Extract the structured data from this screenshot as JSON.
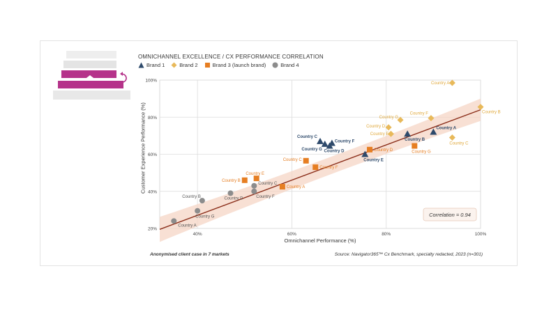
{
  "chart_data": {
    "type": "scatter",
    "title": "OMNICHANNEL EXCELLENCE / CX PERFORMANCE CORRELATION",
    "xlabel": "Omnichannel Performance (%)",
    "ylabel": "Customer Experience Performance (%)",
    "xlim": [
      32,
      100
    ],
    "ylim": [
      20,
      100
    ],
    "xticks": [
      "40%",
      "60%",
      "80%",
      "100%"
    ],
    "xtick_values": [
      40,
      60,
      80,
      100
    ],
    "yticks": [
      "20%",
      "40%",
      "60%",
      "80%",
      "100%"
    ],
    "ytick_values": [
      20,
      40,
      60,
      80,
      100
    ],
    "grid": true,
    "correlation_label": "Correlation = 0.94",
    "trend": {
      "x": [
        32,
        100
      ],
      "y": [
        19.5,
        84
      ]
    },
    "series": [
      {
        "name": "Brand 1",
        "marker": "triangle",
        "color": "#2e4a6b",
        "points": [
          {
            "label": "Country A",
            "x": 90,
            "y": 72
          },
          {
            "label": "Country B",
            "x": 84.5,
            "y": 71
          },
          {
            "label": "Country C",
            "x": 66,
            "y": 67
          },
          {
            "label": "Country D",
            "x": 68,
            "y": 64.5
          },
          {
            "label": "Country E",
            "x": 75.5,
            "y": 60
          },
          {
            "label": "Country F",
            "x": 68.5,
            "y": 66
          },
          {
            "label": "Country G",
            "x": 67,
            "y": 65.5
          }
        ]
      },
      {
        "name": "Brand 2",
        "marker": "diamond",
        "color": "#e8b95a",
        "points": [
          {
            "label": "Country A",
            "x": 94,
            "y": 98.5
          },
          {
            "label": "Country B",
            "x": 100,
            "y": 85.5
          },
          {
            "label": "Country C",
            "x": 94,
            "y": 69
          },
          {
            "label": "Country D",
            "x": 80.5,
            "y": 74.5
          },
          {
            "label": "Country E",
            "x": 81,
            "y": 71
          },
          {
            "label": "Country F",
            "x": 89.5,
            "y": 79.5
          },
          {
            "label": "Country G",
            "x": 83,
            "y": 78.5
          }
        ]
      },
      {
        "name": "Brand 3 (launch brand)",
        "marker": "square",
        "color": "#e67e22",
        "points": [
          {
            "label": "Country A",
            "x": 58,
            "y": 42.5
          },
          {
            "label": "Country B",
            "x": 50,
            "y": 46
          },
          {
            "label": "Country C",
            "x": 63,
            "y": 56.5
          },
          {
            "label": "Country D",
            "x": 76.5,
            "y": 62.5
          },
          {
            "label": "Country E",
            "x": 52.5,
            "y": 47
          },
          {
            "label": "Country F",
            "x": 65,
            "y": 53
          },
          {
            "label": "Country G",
            "x": 86,
            "y": 64.5
          }
        ]
      },
      {
        "name": "Brand 4",
        "marker": "circle",
        "color": "#8c8c8c",
        "points": [
          {
            "label": "Country A",
            "x": 35,
            "y": 24
          },
          {
            "label": "Country B",
            "x": 41,
            "y": 35
          },
          {
            "label": "Country C",
            "x": 52,
            "y": 43
          },
          {
            "label": "Country D",
            "x": 47,
            "y": 39
          },
          {
            "label": "Country F",
            "x": 52,
            "y": 40
          },
          {
            "label": "Country G",
            "x": 40,
            "y": 29.5
          }
        ]
      }
    ]
  },
  "footnote": "Anonymised client case in 7 markets",
  "source": "Source:  Navigator365™ Cx Benchmark, specialty redacted, 2023 (n=301)",
  "legend_labels": [
    "Brand 1",
    "Brand 2",
    "Brand 3 (launch brand)",
    "Brand 4"
  ],
  "colors": {
    "brand1": "#2e4a6b",
    "brand2": "#e8b95a",
    "brand3": "#e67e22",
    "brand4": "#8c8c8c",
    "accent": "#b5338a",
    "trend": "#8b2e1a"
  }
}
